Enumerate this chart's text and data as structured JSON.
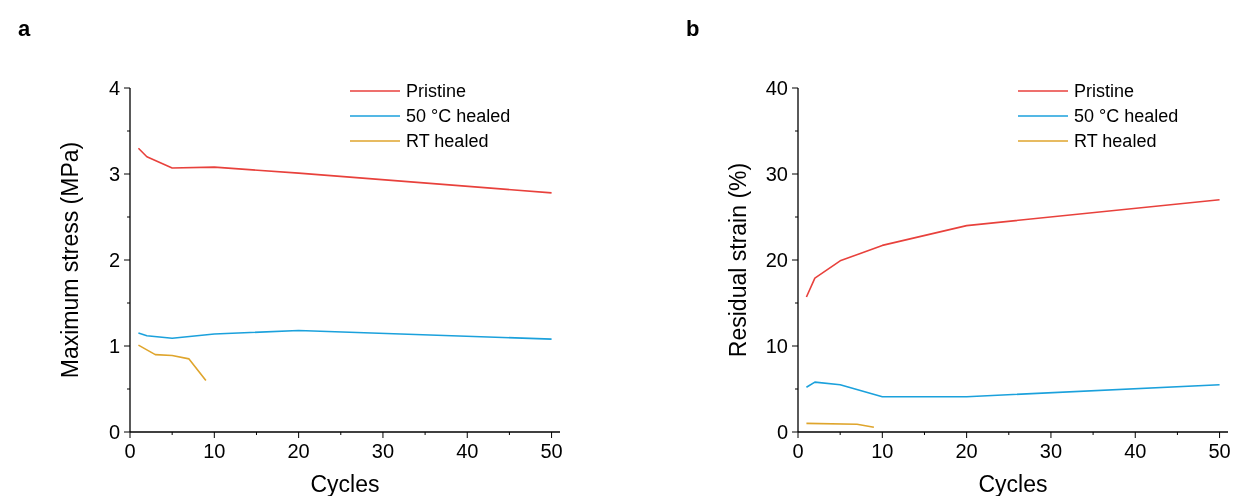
{
  "chart_data": [
    {
      "type": "line",
      "title": "a",
      "xlabel": "Cycles",
      "ylabel": "Maximum stress (MPa)",
      "xlim": [
        0,
        51
      ],
      "xticks": [
        0,
        10,
        20,
        30,
        40,
        50
      ],
      "ylim": [
        0,
        4
      ],
      "yticks": [
        0,
        1,
        2,
        3,
        4
      ],
      "legend": "top right",
      "series": [
        {
          "name": "Pristine",
          "color": "#e8413c",
          "x": [
            1,
            2,
            5,
            10,
            20,
            50
          ],
          "values": [
            3.3,
            3.2,
            3.07,
            3.08,
            3.01,
            2.78
          ]
        },
        {
          "name": "50 °C healed",
          "color": "#1ba1dc",
          "x": [
            1,
            2,
            5,
            10,
            20,
            50
          ],
          "values": [
            1.15,
            1.12,
            1.09,
            1.14,
            1.18,
            1.08
          ]
        },
        {
          "name": "RT healed",
          "color": "#dfa52c",
          "x": [
            1,
            3,
            5,
            7,
            9
          ],
          "values": [
            1.01,
            0.9,
            0.89,
            0.85,
            0.6
          ]
        }
      ]
    },
    {
      "type": "line",
      "title": "b",
      "xlabel": "Cycles",
      "ylabel": "Residual strain (%)",
      "xlim": [
        0,
        51
      ],
      "xticks": [
        0,
        10,
        20,
        30,
        40,
        50
      ],
      "ylim": [
        0,
        40
      ],
      "yticks": [
        0,
        10,
        20,
        30,
        40
      ],
      "legend": "top right",
      "series": [
        {
          "name": "Pristine",
          "color": "#e8413c",
          "x": [
            1,
            2,
            5,
            10,
            20,
            50
          ],
          "values": [
            15.7,
            17.9,
            19.9,
            21.7,
            24.0,
            27.0
          ]
        },
        {
          "name": "50 °C healed",
          "color": "#1ba1dc",
          "x": [
            1,
            2,
            5,
            10,
            20,
            50
          ],
          "values": [
            5.2,
            5.8,
            5.5,
            4.1,
            4.1,
            5.5
          ]
        },
        {
          "name": "RT healed",
          "color": "#dfa52c",
          "x": [
            1,
            7,
            9
          ],
          "values": [
            1.0,
            0.9,
            0.55
          ]
        }
      ]
    }
  ]
}
